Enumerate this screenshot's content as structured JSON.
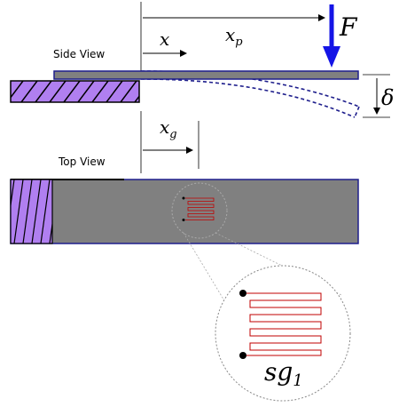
{
  "views": {
    "side_label": "Side View",
    "top_label": "Top View"
  },
  "symbols": {
    "force": "F",
    "x": "x",
    "xp_base": "x",
    "xp_sub": "p",
    "xg_base": "x",
    "xg_sub": "g",
    "delta": "δ",
    "sg_base": "sg",
    "sg_sub": "1"
  },
  "colors": {
    "beam_gray": "#808080",
    "clamp_purple": "#b07ff0",
    "beam_outline": "#1e1e8c",
    "force_arrow": "#1414e6",
    "gauge_red": "#c00000"
  }
}
